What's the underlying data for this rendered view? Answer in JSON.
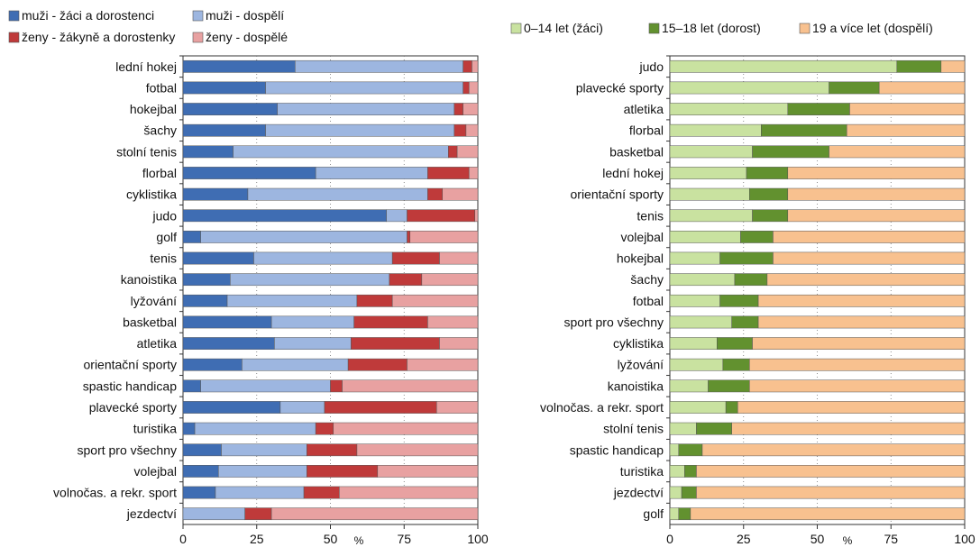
{
  "chart_data": [
    {
      "type": "stacked-bar-horizontal",
      "xlabel": "%",
      "xlim": [
        0,
        100
      ],
      "xticks": [
        "0",
        "25",
        "50",
        "75",
        "100"
      ],
      "legend": [
        {
          "name": "muži - žáci a dorostenci",
          "color": "#3f6db3"
        },
        {
          "name": "muži - dospělí",
          "color": "#9db6e0"
        },
        {
          "name": "ženy - žákyně a dorostenky",
          "color": "#bf3a3a"
        },
        {
          "name": "ženy - dospělé",
          "color": "#e8a1a1"
        }
      ],
      "legend_placement": "top",
      "categories": [
        "lední hokej",
        "fotbal",
        "hokejbal",
        "šachy",
        "stolní tenis",
        "florbal",
        "cyklistika",
        "judo",
        "golf",
        "tenis",
        "kanoistika",
        "lyžování",
        "basketbal",
        "atletika",
        "orientační sporty",
        "spastic handicap",
        "plavecké sporty",
        "turistika",
        "sport pro všechny",
        "volejbal",
        "volnočas. a rekr. sport",
        "jezdectví"
      ],
      "series": [
        {
          "name": "muži - žáci a dorostenci",
          "values": [
            38,
            28,
            32,
            28,
            17,
            45,
            22,
            69,
            6,
            24,
            16,
            15,
            30,
            31,
            20,
            6,
            33,
            4,
            13,
            12,
            11,
            0
          ]
        },
        {
          "name": "muži - dospělí",
          "values": [
            57,
            67,
            60,
            64,
            73,
            38,
            61,
            7,
            70,
            47,
            54,
            44,
            28,
            26,
            36,
            44,
            15,
            41,
            29,
            30,
            30,
            21
          ]
        },
        {
          "name": "ženy - žákyně a dorostenky",
          "values": [
            3,
            2,
            3,
            4,
            3,
            14,
            5,
            23,
            1,
            16,
            11,
            12,
            25,
            30,
            20,
            4,
            38,
            6,
            17,
            24,
            12,
            9
          ]
        },
        {
          "name": "ženy - dospělé",
          "values": [
            2,
            3,
            5,
            4,
            7,
            3,
            12,
            1,
            23,
            13,
            19,
            29,
            17,
            13,
            24,
            46,
            14,
            49,
            41,
            34,
            47,
            70
          ]
        }
      ]
    },
    {
      "type": "stacked-bar-horizontal",
      "xlabel": "%",
      "xlim": [
        0,
        100
      ],
      "xticks": [
        "0",
        "25",
        "50",
        "75",
        "100"
      ],
      "legend": [
        {
          "name": "0–14 let (žáci)",
          "color": "#c9e2a0"
        },
        {
          "name": "15–18 let (dorost)",
          "color": "#62912f"
        },
        {
          "name": "19 a více let (dospělí)",
          "color": "#f8c18f"
        }
      ],
      "legend_placement": "top",
      "categories": [
        "judo",
        "plavecké sporty",
        "atletika",
        "florbal",
        "basketbal",
        "lední hokej",
        "orientační sporty",
        "tenis",
        "volejbal",
        "hokejbal",
        "šachy",
        "fotbal",
        "sport pro všechny",
        "cyklistika",
        "lyžování",
        "kanoistika",
        "volnočas. a rekr. sport",
        "stolní tenis",
        "spastic handicap",
        "turistika",
        "jezdectví",
        "golf"
      ],
      "series": [
        {
          "name": "0–14 let (žáci)",
          "values": [
            77,
            54,
            40,
            31,
            28,
            26,
            27,
            28,
            24,
            17,
            22,
            17,
            21,
            16,
            18,
            13,
            19,
            9,
            3,
            5,
            4,
            3
          ]
        },
        {
          "name": "15–18 let (dorost)",
          "values": [
            15,
            17,
            21,
            29,
            26,
            14,
            13,
            12,
            11,
            18,
            11,
            13,
            9,
            12,
            9,
            14,
            4,
            12,
            8,
            4,
            5,
            4
          ]
        },
        {
          "name": "19 a více let (dospělí)",
          "values": [
            8,
            29,
            39,
            40,
            46,
            60,
            60,
            60,
            65,
            65,
            67,
            70,
            70,
            72,
            73,
            73,
            77,
            79,
            89,
            91,
            91,
            93
          ]
        }
      ]
    }
  ]
}
